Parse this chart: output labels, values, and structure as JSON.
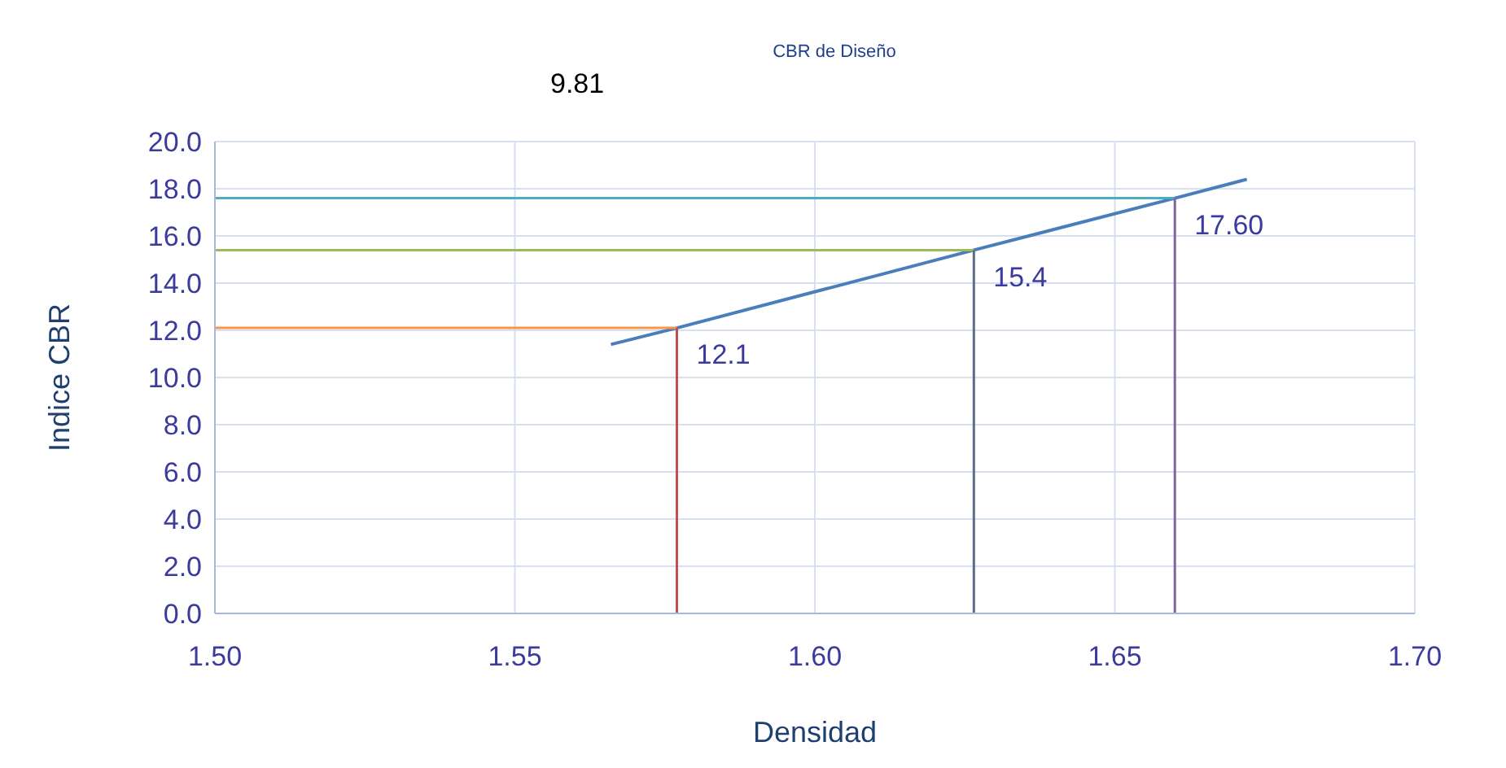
{
  "chart_data": {
    "type": "line",
    "title": "CBR de Diseño",
    "xlabel": "Densidad",
    "ylabel": "Indice  CBR",
    "series": [
      {
        "color": "#4a7ebb",
        "x": [
          1.566,
          1.577,
          1.6265,
          1.66,
          1.672
        ],
        "values": [
          11.4,
          12.1,
          15.4,
          17.6,
          18.4
        ]
      },
      {
        "color": "#f79646",
        "x": [
          1.5,
          1.577
        ],
        "values": [
          12.1,
          12.1
        ]
      },
      {
        "color": "#c0504d",
        "x": [
          1.577,
          1.577
        ],
        "values": [
          0,
          12.1
        ]
      },
      {
        "color": "#9bbb59",
        "x": [
          1.5,
          1.6265
        ],
        "values": [
          15.4,
          15.4
        ]
      },
      {
        "color": "#5a6e8c",
        "x": [
          1.6265,
          1.6265
        ],
        "values": [
          0,
          15.4
        ]
      },
      {
        "color": "#4bacc6",
        "x": [
          1.5,
          1.66
        ],
        "values": [
          17.6,
          17.6
        ]
      },
      {
        "color": "#8064a2",
        "x": [
          1.66,
          1.66
        ],
        "values": [
          0,
          17.6
        ]
      }
    ],
    "xlim": [
      1.5,
      1.7
    ],
    "xticks": [
      {
        "value": 1.5,
        "label": "1.50"
      },
      {
        "value": 1.55,
        "label": "1.55"
      },
      {
        "value": 1.6,
        "label": "1.60"
      },
      {
        "value": 1.65,
        "label": "1.65"
      },
      {
        "value": 1.7,
        "label": "1.70"
      }
    ],
    "ylim": [
      0,
      20
    ],
    "yticks": [
      {
        "value": 0,
        "label": "0.0"
      },
      {
        "value": 2,
        "label": "2.0"
      },
      {
        "value": 4,
        "label": "4.0"
      },
      {
        "value": 6,
        "label": "6.0"
      },
      {
        "value": 8,
        "label": "8.0"
      },
      {
        "value": 10,
        "label": "10.0"
      },
      {
        "value": 12,
        "label": "12.0"
      },
      {
        "value": 14,
        "label": "14.0"
      },
      {
        "value": 16,
        "label": "16.0"
      },
      {
        "value": 18,
        "label": "18.0"
      },
      {
        "value": 20,
        "label": "20.0"
      }
    ],
    "annotations": [
      "9.81",
      {
        "text": "12.1",
        "x": 1.577,
        "y": 12.1
      },
      {
        "text": "15.4",
        "x": 1.6265,
        "y": 15.4
      },
      {
        "text": "17.60",
        "x": 1.66,
        "y": 17.6
      }
    ],
    "grid": true,
    "legend": false,
    "marker": "none",
    "line_style": "solid"
  }
}
